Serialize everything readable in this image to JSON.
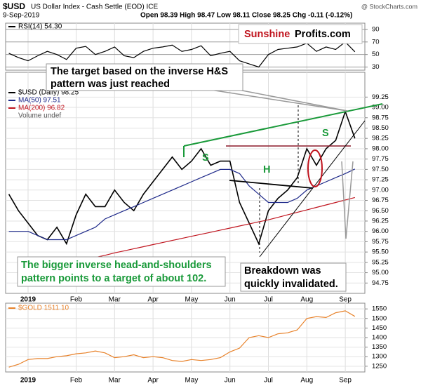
{
  "header": {
    "symbol": "$USD",
    "name": "US Dollar Index - Cash Settle (EOD) ICE",
    "source": "@ StockCharts.com",
    "date": "9-Sep-2019",
    "quote": "Open 98.39 High 98.47 Low 98.11 Close 98.25 Chg -0.11 (-0.12%)"
  },
  "annotations": {
    "logo_a": "Sunshine",
    "logo_b": "Profits.com",
    "target": [
      "The target based on the inverse H&S",
      "pattern was just reached"
    ],
    "bigger": [
      "The bigger inverse head-and-shoulders",
      "pattern points to a target of about 102."
    ],
    "breakdown": [
      "Breakdown was",
      "quickly invalidated."
    ],
    "s1": "S",
    "h": "H",
    "s2": "S"
  },
  "chart_data": [
    {
      "type": "line",
      "ylim": [
        25,
        100
      ],
      "yticks": [
        30,
        50,
        70,
        90
      ],
      "series": [
        {
          "name": "RSI(14) 54.30",
          "color": "#000000",
          "values": [
            52,
            45,
            40,
            48,
            55,
            50,
            42,
            60,
            63,
            50,
            55,
            62,
            48,
            45,
            55,
            60,
            62,
            65,
            55,
            58,
            64,
            48,
            52,
            55,
            40,
            35,
            30,
            50,
            58,
            60,
            62,
            68,
            55,
            62,
            58,
            70,
            54.3
          ]
        }
      ]
    },
    {
      "type": "line",
      "ylim": [
        94.5,
        99.85
      ],
      "volume_label": "Volume undef",
      "categories": [
        null,
        null,
        "2019",
        null,
        null,
        null,
        null,
        "Feb",
        null,
        null,
        null,
        "Mar",
        null,
        null,
        null,
        "Apr",
        null,
        null,
        null,
        "May",
        null,
        null,
        null,
        "Jun",
        null,
        null,
        null,
        "Jul",
        null,
        null,
        null,
        "Aug",
        null,
        null,
        null,
        "Sep",
        null
      ],
      "yticks": [
        94.75,
        {
          "value": 95,
          "label": "95.00"
        },
        95.25,
        {
          "value": 95.5,
          "label": "95.50"
        },
        95.75,
        {
          "value": 96,
          "label": "96.00"
        },
        96.25,
        {
          "value": 96.5,
          "label": "96.50"
        },
        96.75,
        {
          "value": 97,
          "label": "97.00"
        },
        97.25,
        {
          "value": 97.5,
          "label": "97.50"
        },
        97.75,
        {
          "value": 98,
          "label": "98.00"
        },
        98.25,
        {
          "value": 98.5,
          "label": "98.50"
        },
        98.75,
        {
          "value": 99,
          "label": "99.00"
        },
        99.25
      ],
      "series": [
        {
          "name": "$USD (Daily) 98.25",
          "color": "#000000",
          "values": [
            96.9,
            96.5,
            96.2,
            95.9,
            95.8,
            96.1,
            95.7,
            96.4,
            96.9,
            96.6,
            96.6,
            97.0,
            96.7,
            96.5,
            96.9,
            97.2,
            97.5,
            97.8,
            97.5,
            97.7,
            98.0,
            97.6,
            97.7,
            97.7,
            96.7,
            96.2,
            95.7,
            96.5,
            96.8,
            97.0,
            97.3,
            98.0,
            97.6,
            98.0,
            98.2,
            98.9,
            98.25
          ]
        },
        {
          "name": "MA(50) 97.51",
          "color": "#1f2a8a",
          "values": [
            96.0,
            96.0,
            96.0,
            95.9,
            95.8,
            95.8,
            95.8,
            95.9,
            96.0,
            96.1,
            96.3,
            96.4,
            96.5,
            96.6,
            96.7,
            96.8,
            96.9,
            97.0,
            97.1,
            97.2,
            97.3,
            97.4,
            97.5,
            97.5,
            97.4,
            97.1,
            96.9,
            96.7,
            96.7,
            96.7,
            96.8,
            97.0,
            97.1,
            97.2,
            97.3,
            97.4,
            97.51
          ]
        },
        {
          "name": "MA(200) 96.82",
          "color": "#c0141e",
          "values": [
            null,
            null,
            null,
            null,
            null,
            null,
            95.2,
            95.26,
            95.31,
            95.37,
            95.42,
            95.48,
            95.53,
            95.58,
            95.63,
            95.68,
            95.73,
            95.78,
            95.83,
            95.88,
            95.93,
            95.98,
            96.03,
            96.08,
            96.13,
            96.18,
            96.23,
            96.28,
            96.34,
            96.4,
            96.46,
            96.52,
            96.58,
            96.64,
            96.7,
            96.76,
            96.82
          ]
        }
      ]
    },
    {
      "type": "line",
      "ylim": [
        1220,
        1580
      ],
      "yticks": [
        1250,
        1300,
        1350,
        1400,
        1450,
        1500,
        1550
      ],
      "categories": [
        null,
        null,
        "2019",
        null,
        null,
        null,
        null,
        "Feb",
        null,
        null,
        null,
        "Mar",
        null,
        null,
        null,
        "Apr",
        null,
        null,
        null,
        "May",
        null,
        null,
        null,
        "Jun",
        null,
        null,
        null,
        "Jul",
        null,
        null,
        null,
        "Aug",
        null,
        null,
        null,
        "Sep",
        null
      ],
      "series": [
        {
          "name": "$GOLD 1511.10",
          "color": "#e8822a",
          "values": [
            1245,
            1260,
            1285,
            1290,
            1290,
            1300,
            1305,
            1315,
            1320,
            1330,
            1320,
            1295,
            1300,
            1310,
            1295,
            1300,
            1295,
            1280,
            1275,
            1285,
            1280,
            1285,
            1295,
            1325,
            1345,
            1400,
            1410,
            1400,
            1420,
            1425,
            1440,
            1500,
            1510,
            1505,
            1530,
            1540,
            1511.1
          ]
        }
      ]
    }
  ]
}
